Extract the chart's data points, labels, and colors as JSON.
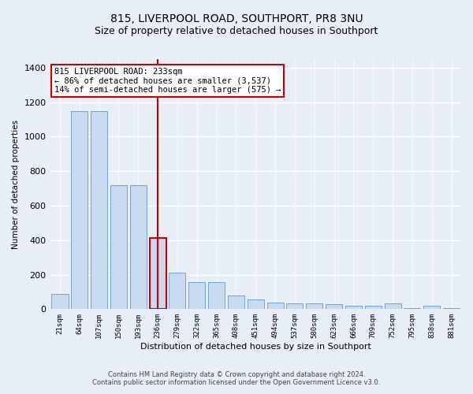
{
  "title": "815, LIVERPOOL ROAD, SOUTHPORT, PR8 3NU",
  "subtitle": "Size of property relative to detached houses in Southport",
  "xlabel": "Distribution of detached houses by size in Southport",
  "ylabel": "Number of detached properties",
  "footer_line1": "Contains HM Land Registry data © Crown copyright and database right 2024.",
  "footer_line2": "Contains public sector information licensed under the Open Government Licence v3.0.",
  "categories": [
    "21sqm",
    "64sqm",
    "107sqm",
    "150sqm",
    "193sqm",
    "236sqm",
    "279sqm",
    "322sqm",
    "365sqm",
    "408sqm",
    "451sqm",
    "494sqm",
    "537sqm",
    "580sqm",
    "623sqm",
    "666sqm",
    "709sqm",
    "752sqm",
    "795sqm",
    "838sqm",
    "881sqm"
  ],
  "values": [
    90,
    1150,
    1150,
    720,
    720,
    415,
    210,
    155,
    155,
    80,
    55,
    40,
    35,
    35,
    30,
    20,
    20,
    35,
    5,
    20,
    5
  ],
  "bar_color": "#c8daf0",
  "bar_edge_color": "#6699cc",
  "highlight_bar_index": 5,
  "highlight_color": "#cc0000",
  "annotation_text": "815 LIVERPOOL ROAD: 233sqm\n← 86% of detached houses are smaller (3,537)\n14% of semi-detached houses are larger (575) →",
  "annotation_box_color": "#ffffff",
  "annotation_box_edge": "#cc0000",
  "ylim": [
    0,
    1450
  ],
  "yticks": [
    0,
    200,
    400,
    600,
    800,
    1000,
    1200,
    1400
  ],
  "background_color": "#e8eef8",
  "plot_bg_color": "#e8eef8",
  "grid_color": "#ffffff",
  "title_fontsize": 10,
  "subtitle_fontsize": 9
}
